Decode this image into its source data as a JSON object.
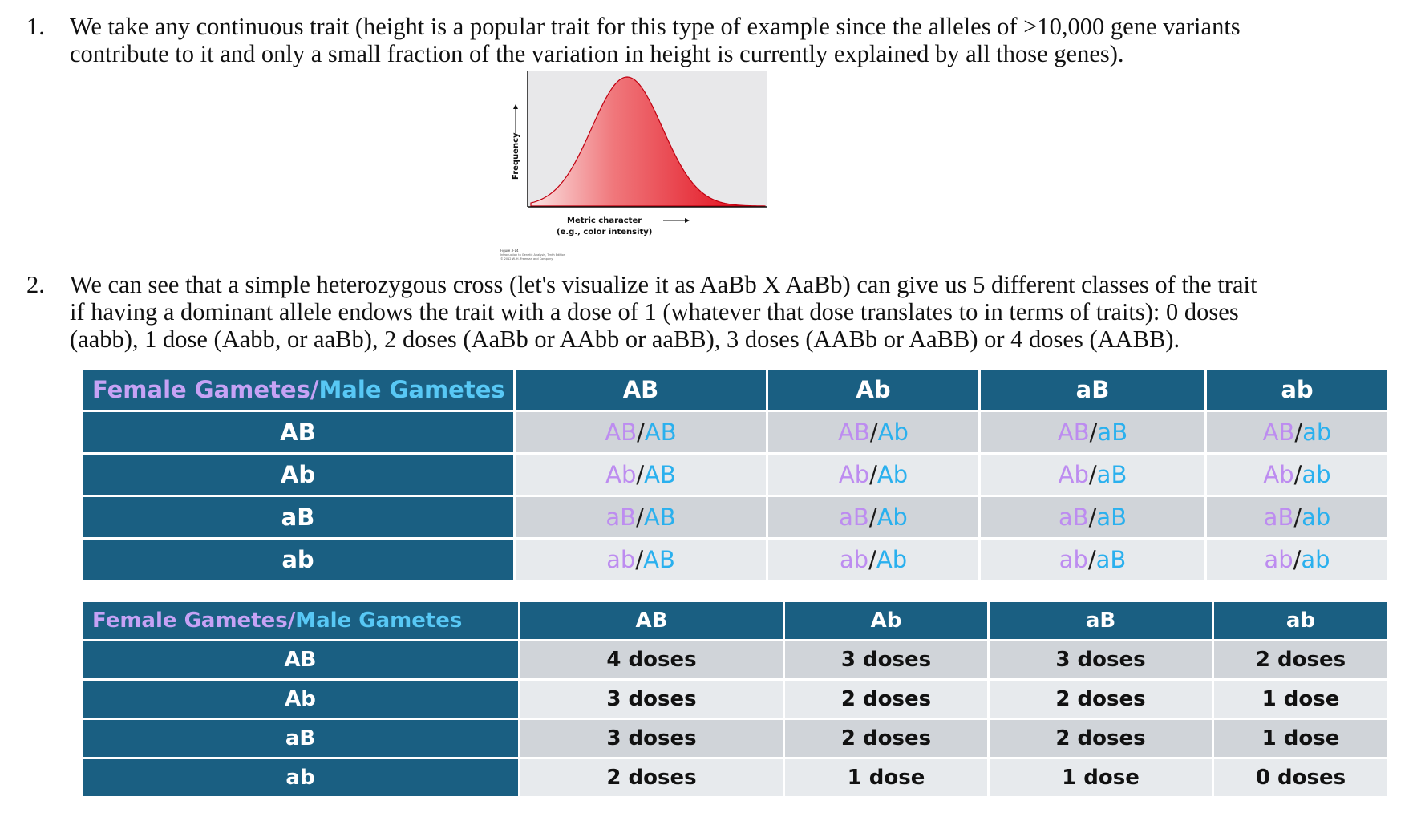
{
  "paragraph1": {
    "number": "1.",
    "lines": [
      "We take any continuous trait (height is a popular trait for this type of example since the alleles of >10,000 gene variants",
      "contribute to it and only a small fraction of the variation in height is currently explained by all those genes)."
    ]
  },
  "figure": {
    "ylabel": "Frequency",
    "xlabel_line1": "Metric character",
    "xlabel_line2": "(e.g., color intensity)",
    "caption_line1": "Figure 3-14",
    "caption_line2": "Introduction to Genetic Analysis, Tenth Edition",
    "caption_line3": "© 2012 W. H. Freeman and Company",
    "colors": {
      "curve_light": "#f7d4d4",
      "curve_dark": "#e00010",
      "background": "#e8e8ea"
    }
  },
  "paragraph2": {
    "number": "2.",
    "lines": [
      "We can see that a simple heterozygous cross (let's visualize it as AaBb X AaBb) can give us 5 different classes of the trait",
      "if having a dominant allele endows the trait with a dose of 1 (whatever that dose translates to in terms of traits): 0 doses",
      "(aabb), 1 dose (Aabb, or aaBb), 2 doses (AaBb or AAbb or aaBB), 3 doses (AABb or AaBB) or 4 doses (AABB)."
    ]
  },
  "table1": {
    "corner_female": "Female Gametes",
    "corner_slash": "/",
    "corner_male": "Male Gametes",
    "columns": [
      "AB",
      "Ab",
      "aB",
      "ab"
    ],
    "rows": [
      {
        "label": "AB",
        "cells": [
          [
            "AB",
            "/",
            "AB"
          ],
          [
            "AB",
            "/",
            "Ab"
          ],
          [
            "AB",
            "/",
            "aB"
          ],
          [
            "AB",
            "/",
            "ab"
          ]
        ]
      },
      {
        "label": "Ab",
        "cells": [
          [
            "Ab",
            "/",
            "AB"
          ],
          [
            "Ab",
            "/",
            "Ab"
          ],
          [
            "Ab",
            "/",
            "aB"
          ],
          [
            "Ab",
            "/",
            "ab"
          ]
        ]
      },
      {
        "label": "aB",
        "cells": [
          [
            "aB",
            "/",
            "AB"
          ],
          [
            "aB",
            "/",
            "Ab"
          ],
          [
            "aB",
            "/",
            "aB"
          ],
          [
            "aB",
            "/",
            "ab"
          ]
        ]
      },
      {
        "label": "ab",
        "cells": [
          [
            "ab",
            "/",
            "AB"
          ],
          [
            "ab",
            "/",
            "Ab"
          ],
          [
            "ab",
            "/",
            "aB"
          ],
          [
            "ab",
            "/",
            "ab"
          ]
        ]
      }
    ]
  },
  "table2": {
    "corner_female": "Female Gametes",
    "corner_slash": "/",
    "corner_male": "Male Gametes",
    "columns": [
      "AB",
      "Ab",
      "aB",
      "ab"
    ],
    "rows": [
      {
        "label": "AB",
        "cells": [
          "4 doses",
          "3 doses",
          "3 doses",
          "2 doses"
        ]
      },
      {
        "label": "Ab",
        "cells": [
          "3 doses",
          "2 doses",
          "2 doses",
          "1 dose"
        ]
      },
      {
        "label": "aB",
        "cells": [
          "3 doses",
          "2 doses",
          "2 doses",
          "1 dose"
        ]
      },
      {
        "label": "ab",
        "cells": [
          "2 doses",
          "1 dose",
          "1 dose",
          "0 doses"
        ]
      }
    ]
  }
}
